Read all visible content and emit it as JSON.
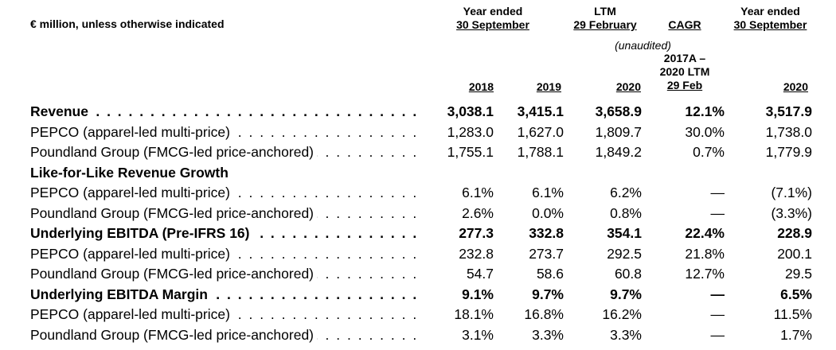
{
  "header": {
    "units": "€ million, unless otherwise indicated",
    "group1_line1": "Year ended",
    "group1_line2": "30 September",
    "group2_line1": "LTM",
    "group2_line2": "29 February",
    "group2_note": "(unaudited)",
    "cagr": "CAGR",
    "cagr_sub1": "2017A –",
    "cagr_sub2": "2020 LTM",
    "cagr_sub3": "29 Feb",
    "group3_line1": "Year ended",
    "group3_line2": "30 September",
    "col_2018": "2018",
    "col_2019": "2019",
    "col_ltm": "2020",
    "col_2020": "2020"
  },
  "rows": [
    {
      "label": "Revenue",
      "bold": true,
      "values": [
        "3,038.1",
        "3,415.1",
        "3,658.9",
        "12.1%",
        "3,517.9"
      ]
    },
    {
      "label": "PEPCO (apparel-led multi-price)",
      "bold": false,
      "values": [
        "1,283.0",
        "1,627.0",
        "1,809.7",
        "30.0%",
        "1,738.0"
      ]
    },
    {
      "label": "Poundland Group (FMCG-led price-anchored)",
      "bold": false,
      "values": [
        "1,755.1",
        "1,788.1",
        "1,849.2",
        "0.7%",
        "1,779.9"
      ]
    },
    {
      "label": "Like-for-Like Revenue Growth",
      "bold": true,
      "values": [
        "",
        "",
        "",
        "",
        ""
      ]
    },
    {
      "label": "PEPCO (apparel-led multi-price)",
      "bold": false,
      "values": [
        "6.1%",
        "6.1%",
        "6.2%",
        "—",
        "(7.1%)"
      ]
    },
    {
      "label": "Poundland Group (FMCG-led price-anchored)",
      "bold": false,
      "values": [
        "2.6%",
        "0.0%",
        "0.8%",
        "—",
        "(3.3%)"
      ]
    },
    {
      "label": "Underlying EBITDA (Pre-IFRS 16)",
      "bold": true,
      "values": [
        "277.3",
        "332.8",
        "354.1",
        "22.4%",
        "228.9"
      ]
    },
    {
      "label": "PEPCO (apparel-led multi-price)",
      "bold": false,
      "values": [
        "232.8",
        "273.7",
        "292.5",
        "21.8%",
        "200.1"
      ]
    },
    {
      "label": "Poundland Group (FMCG-led price-anchored)",
      "bold": false,
      "values": [
        "54.7",
        "58.6",
        "60.8",
        "12.7%",
        "29.5"
      ]
    },
    {
      "label": "Underlying EBITDA Margin",
      "bold": true,
      "values": [
        "9.1%",
        "9.7%",
        "9.7%",
        "—",
        "6.5%"
      ]
    },
    {
      "label": "PEPCO (apparel-led multi-price)",
      "bold": false,
      "values": [
        "18.1%",
        "16.8%",
        "16.2%",
        "—",
        "11.5%"
      ]
    },
    {
      "label": "Poundland Group (FMCG-led price-anchored)",
      "bold": false,
      "values": [
        "3.1%",
        "3.3%",
        "3.3%",
        "—",
        "1.7%"
      ]
    }
  ]
}
